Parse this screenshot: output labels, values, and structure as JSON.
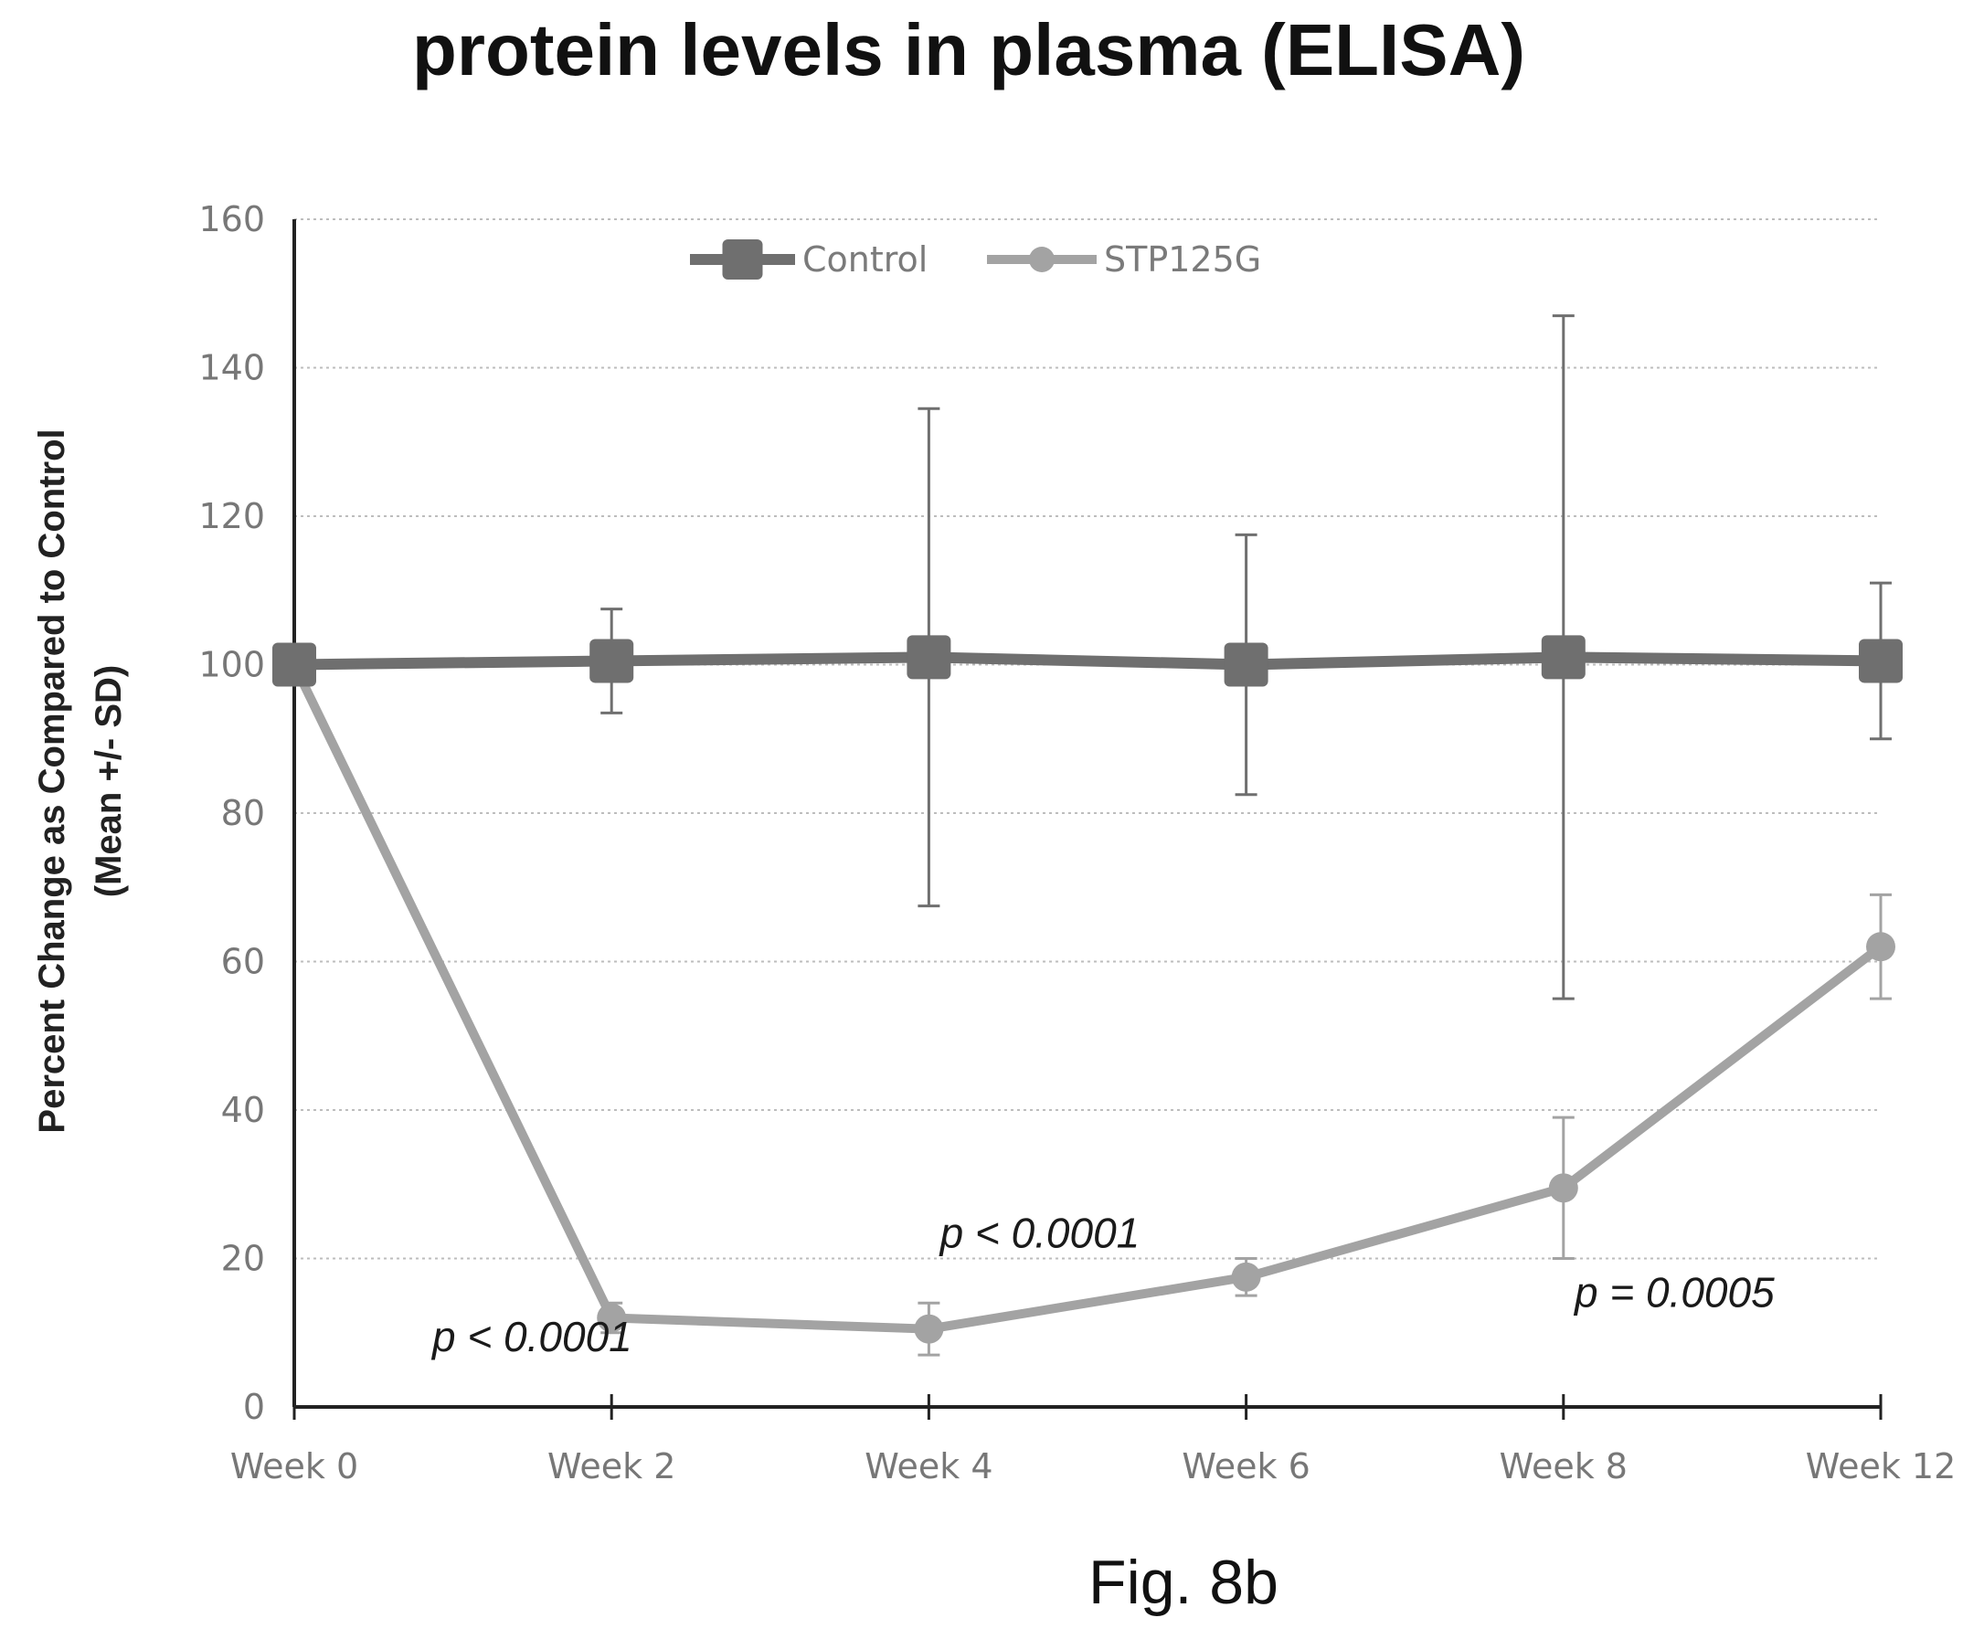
{
  "chart_data": {
    "type": "line",
    "title": "protein levels in plasma (ELISA)",
    "ylabel_line1": "Percent Change as Compared to Control",
    "ylabel_line2": "(Mean +/- SD)",
    "xlabel": "",
    "categories": [
      "Week 0",
      "Week 2",
      "Week 4",
      "Week 6",
      "Week 8",
      "Week 12"
    ],
    "y_ticks": [
      0,
      20,
      40,
      60,
      80,
      100,
      120,
      140,
      160
    ],
    "ylim": [
      0,
      160
    ],
    "grid": "horizontal dotted",
    "legend": "top-center",
    "series": [
      {
        "name": "Control",
        "marker": "square",
        "color": "#6f6f6f",
        "values": [
          100,
          100.5,
          101,
          100,
          101,
          100.5
        ],
        "error": [
          null,
          7,
          33.5,
          17.5,
          46,
          10.5
        ]
      },
      {
        "name": "STP125G",
        "marker": "circle",
        "color": "#a3a3a3",
        "values": [
          100,
          12,
          10.5,
          17.5,
          29.5,
          62
        ],
        "error": [
          null,
          2,
          3.5,
          2.5,
          9.5,
          7
        ]
      }
    ],
    "annotations": [
      {
        "text": "p < 0.0001",
        "x": 0.75,
        "y": 7.5
      },
      {
        "text": "p < 0.0001",
        "x": 2.35,
        "y": 21.5
      },
      {
        "text": "p = 0.0005",
        "x": 4.35,
        "y": 13.5
      }
    ]
  },
  "figure_label": "Fig. 8b"
}
